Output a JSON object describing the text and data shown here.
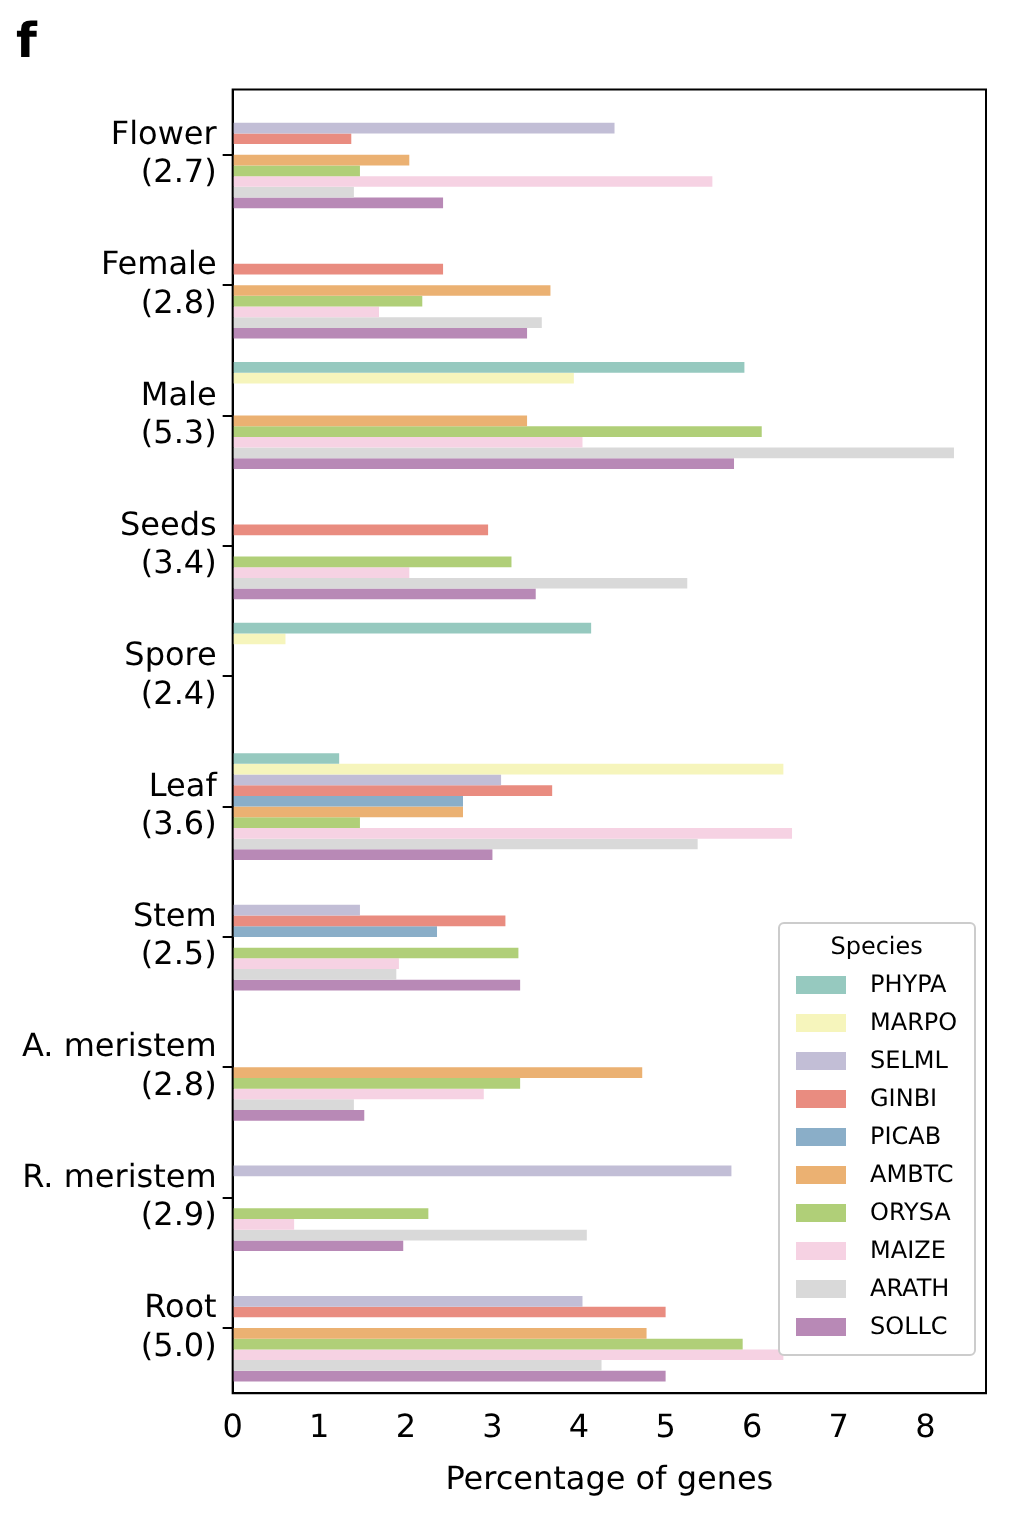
{
  "chart_data": {
    "type": "bar",
    "orientation": "horizontal",
    "title": "f",
    "xlabel": "Percentage of genes",
    "legend_title": "Species",
    "legend": "bottom right",
    "grid": false,
    "categories": [
      "Flower\n(2.7)",
      "Female\n(2.8)",
      "Male\n(5.3)",
      "Seeds\n(3.4)",
      "Spore\n(2.4)",
      "Leaf\n(3.6)",
      "Stem\n(2.5)",
      "A. meristem\n(2.8)",
      "R. meristem\n(2.9)",
      "Root\n(5.0)"
    ],
    "xlim": [
      0,
      8.7
    ],
    "xticks": [
      0,
      1,
      2,
      3,
      4,
      5,
      6,
      7,
      8
    ],
    "series": [
      {
        "name": "PHYPA",
        "color": "#96c9bf",
        "values": [
          null,
          null,
          5.91,
          null,
          4.14,
          1.23,
          null,
          null,
          null,
          null
        ]
      },
      {
        "name": "MARPO",
        "color": "#f6f5bc",
        "values": [
          null,
          null,
          3.94,
          null,
          0.61,
          6.36,
          null,
          null,
          null,
          null
        ]
      },
      {
        "name": "SELML",
        "color": "#c2bed6",
        "values": [
          4.41,
          null,
          null,
          null,
          null,
          3.1,
          1.47,
          null,
          5.76,
          4.04
        ]
      },
      {
        "name": "GINBI",
        "color": "#e98c80",
        "values": [
          1.37,
          2.43,
          null,
          2.95,
          null,
          3.69,
          3.15,
          null,
          null,
          5.0
        ]
      },
      {
        "name": "PICAB",
        "color": "#8aaec8",
        "values": [
          null,
          null,
          null,
          null,
          null,
          2.66,
          2.36,
          null,
          null,
          null
        ]
      },
      {
        "name": "AMBTC",
        "color": "#ebb172",
        "values": [
          2.04,
          3.67,
          3.4,
          null,
          null,
          2.66,
          null,
          4.73,
          null,
          4.78
        ]
      },
      {
        "name": "ORYSA",
        "color": "#b0cf78",
        "values": [
          1.47,
          2.19,
          6.11,
          3.22,
          null,
          1.47,
          3.3,
          3.32,
          2.26,
          5.89
        ]
      },
      {
        "name": "MAIZE",
        "color": "#f6d2e3",
        "values": [
          5.54,
          1.69,
          4.04,
          2.04,
          null,
          6.46,
          1.92,
          2.9,
          0.71,
          6.36
        ]
      },
      {
        "name": "ARATH",
        "color": "#d9d9d9",
        "values": [
          1.4,
          3.57,
          8.33,
          5.25,
          null,
          5.37,
          1.89,
          1.4,
          4.09,
          4.26
        ]
      },
      {
        "name": "SOLLC",
        "color": "#b889b6",
        "values": [
          2.43,
          3.4,
          5.79,
          3.5,
          null,
          3.0,
          3.32,
          1.52,
          1.97,
          5.0
        ]
      }
    ]
  }
}
